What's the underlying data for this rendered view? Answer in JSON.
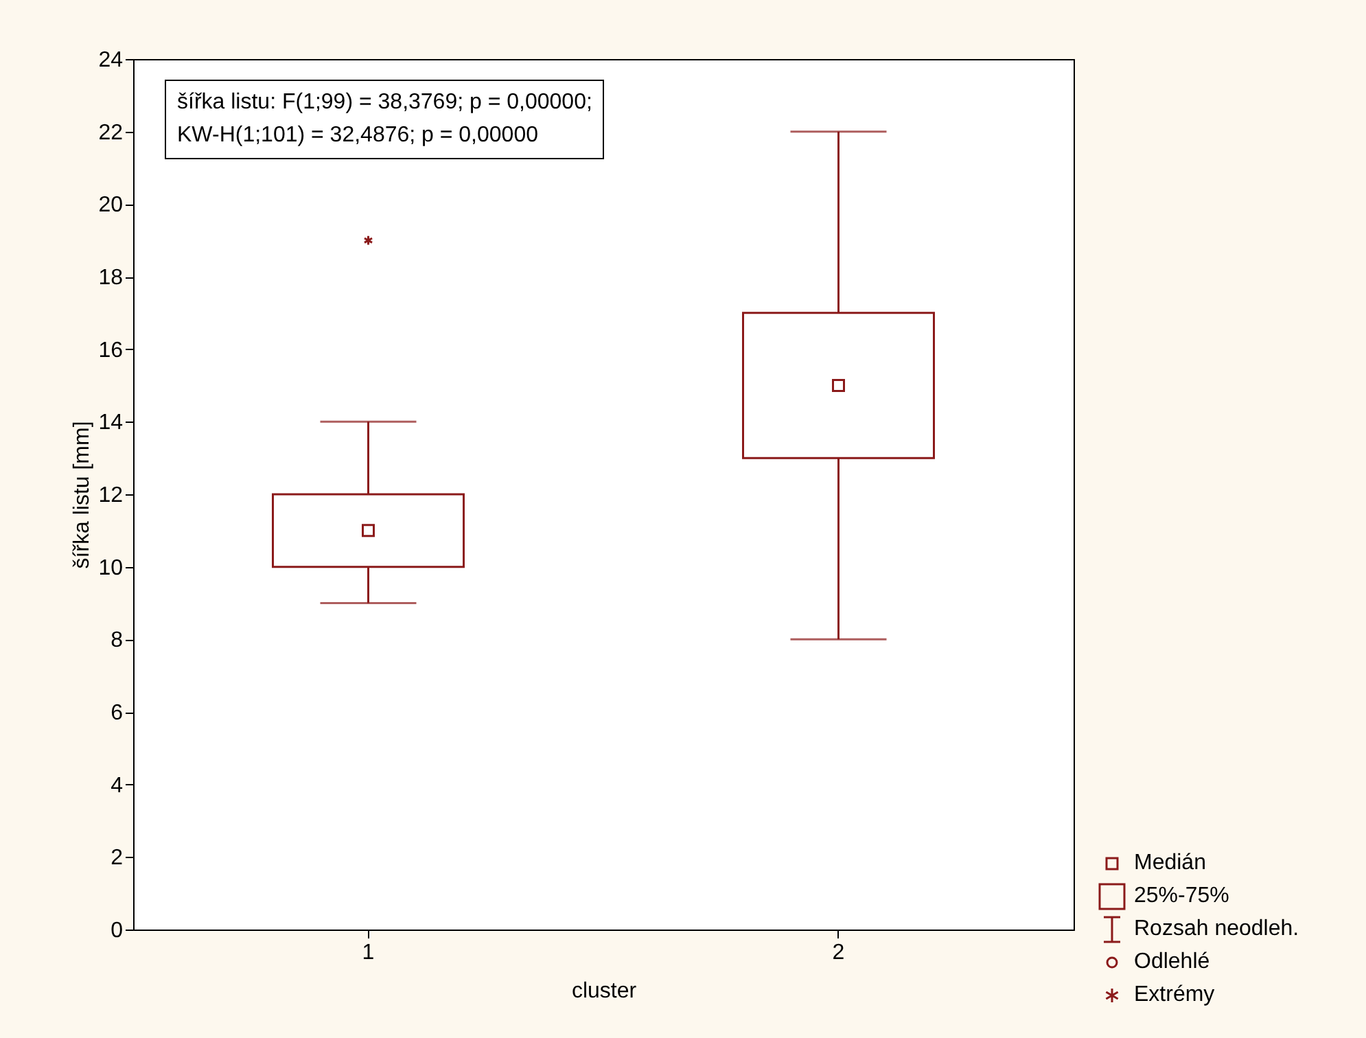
{
  "chart_data": {
    "type": "box",
    "xlabel": "cluster",
    "ylabel": "šířka listu [mm]",
    "categories": [
      "1",
      "2"
    ],
    "ylim": [
      0,
      24
    ],
    "yticks": [
      0,
      2,
      4,
      6,
      8,
      10,
      12,
      14,
      16,
      18,
      20,
      22,
      24
    ],
    "grid": false,
    "legend": "bottom right",
    "series": [
      {
        "type": "box",
        "color": "#8b1a1a",
        "boxes": [
          {
            "low": 9,
            "q1": 10,
            "median": 11,
            "q3": 12,
            "high": 14
          },
          {
            "low": 8,
            "q1": 13,
            "median": 15,
            "q3": 17,
            "high": 22
          }
        ]
      },
      {
        "type": "scatter",
        "name": "Extrémy",
        "color": "#8b1a1a",
        "marker": "cross",
        "x": [
          "1"
        ],
        "values": [
          19
        ]
      }
    ],
    "annotations": [
      "šířka listu:   F(1;99) = 38,3769; p = 0,00000;",
      "KW-H(1;101) = 32,4876; p = 0,00000",
      "Medián",
      "25%-75%",
      "Rozsah neodleh.",
      "Odlehlé"
    ]
  }
}
